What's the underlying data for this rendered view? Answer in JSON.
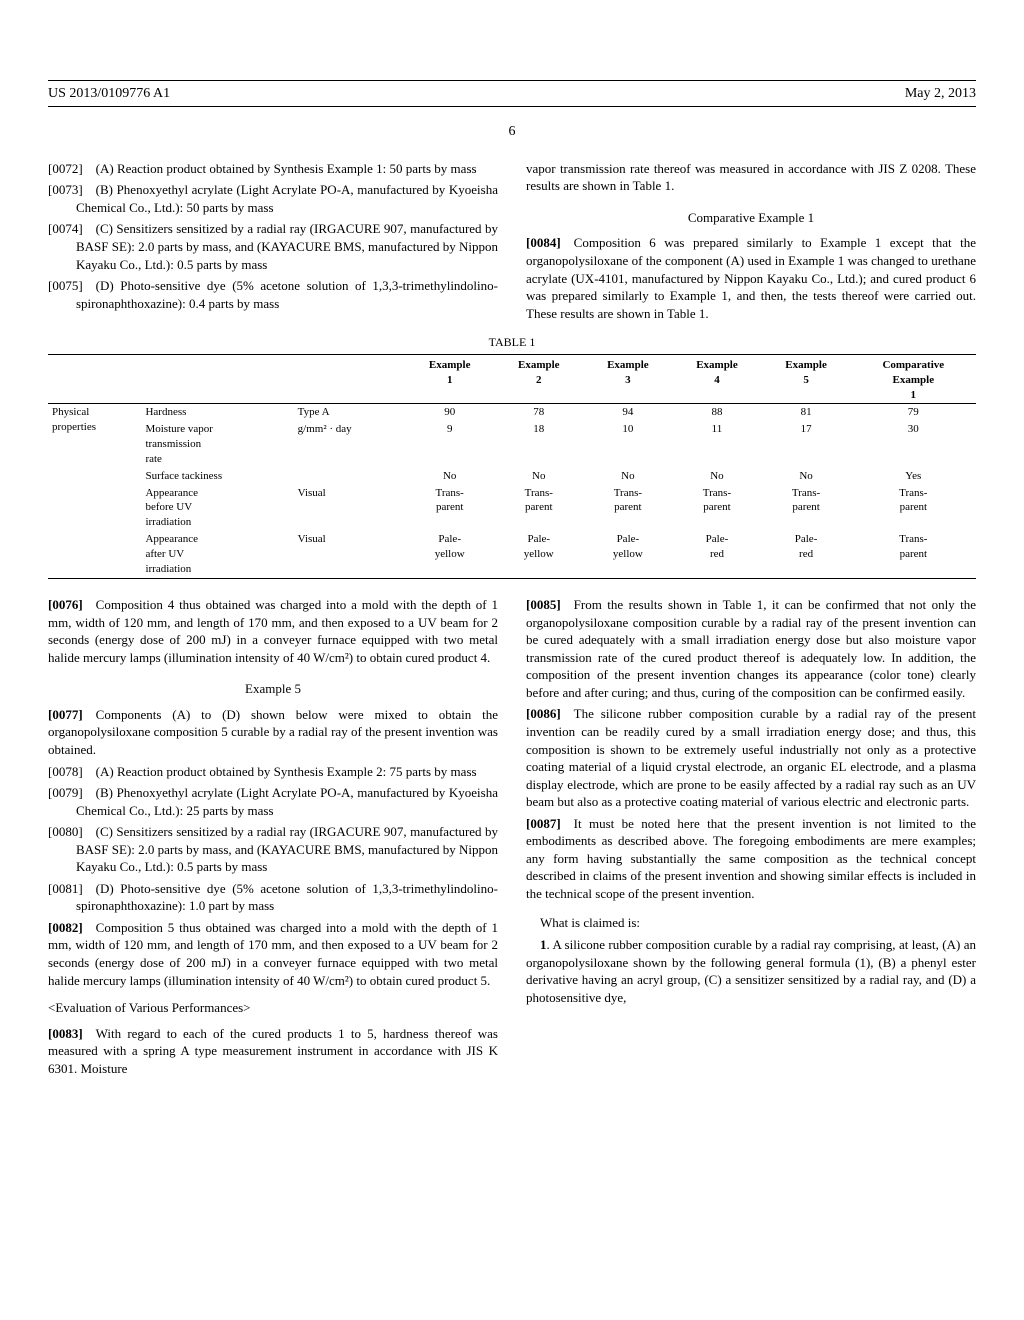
{
  "header": {
    "pub_no": "US 2013/0109776 A1",
    "date": "May 2, 2013"
  },
  "page_number": "6",
  "left": {
    "p0072": "[0072] (A) Reaction product obtained by Synthesis Example 1: 50 parts by mass",
    "p0073": "[0073] (B) Phenoxyethyl acrylate (Light Acrylate PO-A, manufactured by Kyoeisha Chemical Co., Ltd.): 50 parts by mass",
    "p0074": "[0074] (C) Sensitizers sensitized by a radial ray (IRGACURE 907, manufactured by BASF SE): 2.0 parts by mass, and (KAYACURE BMS, manufactured by Nippon Kayaku Co., Ltd.): 0.5 parts by mass",
    "p0075": "[0075] (D) Photo-sensitive dye (5% acetone solution of 1,3,3-trimethylindolino-spironaphthoxazine): 0.4 parts by mass",
    "p0076_num": "[0076]",
    "p0076": "Composition 4 thus obtained was charged into a mold with the depth of 1 mm, width of 120 mm, and length of 170 mm, and then exposed to a UV beam for 2 seconds (energy dose of 200 mJ) in a conveyer furnace equipped with two metal halide mercury lamps (illumination intensity of 40 W/cm²) to obtain cured product 4.",
    "ex5_title": "Example 5",
    "p0077_num": "[0077]",
    "p0077": "Components (A) to (D) shown below were mixed to obtain the organopolysiloxane composition 5 curable by a radial ray of the present invention was obtained.",
    "p0078": "[0078] (A) Reaction product obtained by Synthesis Example 2: 75 parts by mass",
    "p0079": "[0079] (B) Phenoxyethyl acrylate (Light Acrylate PO-A, manufactured by Kyoeisha Chemical Co., Ltd.): 25 parts by mass",
    "p0080": "[0080] (C) Sensitizers sensitized by a radial ray (IRGACURE 907, manufactured by BASF SE): 2.0 parts by mass, and (KAYACURE BMS, manufactured by Nippon Kayaku Co., Ltd.): 0.5 parts by mass",
    "p0081": "[0081] (D) Photo-sensitive dye (5% acetone solution of 1,3,3-trimethylindolino-spironaphthoxazine): 1.0 part by mass",
    "p0082_num": "[0082]",
    "p0082": "Composition 5 thus obtained was charged into a mold with the depth of 1 mm, width of 120 mm, and length of 170 mm, and then exposed to a UV beam for 2 seconds (energy dose of 200 mJ) in a conveyer furnace equipped with two metal halide mercury lamps (illumination intensity of 40 W/cm²) to obtain cured product 5.",
    "eval_head": "<Evaluation of Various Performances>",
    "p0083_num": "[0083]",
    "p0083": "With regard to each of the cured products 1 to 5, hardness thereof was measured with a spring A type measurement instrument in accordance with JIS K 6301. Moisture"
  },
  "right": {
    "r_cont": "vapor transmission rate thereof was measured in accordance with JIS Z 0208. These results are shown in Table 1.",
    "comp_title": "Comparative Example 1",
    "p0084_num": "[0084]",
    "p0084": "Composition 6 was prepared similarly to Example 1 except that the organopolysiloxane of the component (A) used in Example 1 was changed to urethane acrylate (UX-4101, manufactured by Nippon Kayaku Co., Ltd.); and cured product 6 was prepared similarly to Example 1, and then, the tests thereof were carried out. These results are shown in Table 1.",
    "p0085_num": "[0085]",
    "p0085": "From the results shown in Table 1, it can be confirmed that not only the organopolysiloxane composition curable by a radial ray of the present invention can be cured adequately with a small irradiation energy dose but also moisture vapor transmission rate of the cured product thereof is adequately low. In addition, the composition of the present invention changes its appearance (color tone) clearly before and after curing; and thus, curing of the composition can be confirmed easily.",
    "p0086_num": "[0086]",
    "p0086": "The silicone rubber composition curable by a radial ray of the present invention can be readily cured by a small irradiation energy dose; and thus, this composition is shown to be extremely useful industrially not only as a protective coating material of a liquid crystal electrode, an organic EL electrode, and a plasma display electrode, which are prone to be easily affected by a radial ray such as an UV beam but also as a protective coating material of various electric and electronic parts.",
    "p0087_num": "[0087]",
    "p0087": "It must be noted here that the present invention is not limited to the embodiments as described above. The foregoing embodiments are mere examples; any form having substantially the same composition as the technical concept described in claims of the present invention and showing similar effects is included in the technical scope of the present invention.",
    "claims_head": "What is claimed is:",
    "claim1_num": "1",
    "claim1": ". A silicone rubber composition curable by a radial ray comprising, at least, (A) an organopolysiloxane shown by the following general formula (1), (B) a phenyl ester derivative having an acryl group, (C) a sensitizer sensitized by a radial ray, and (D) a photosensitive dye,"
  },
  "table": {
    "label": "TABLE 1",
    "columns": [
      "Example 1",
      "Example 2",
      "Example 3",
      "Example 4",
      "Example 5",
      "Comparative Example 1"
    ],
    "rowgroup_label": "Physical properties",
    "rows": [
      {
        "prop": "Hardness",
        "unit": "Type A",
        "vals": [
          "90",
          "78",
          "94",
          "88",
          "81",
          "79"
        ]
      },
      {
        "prop": "Moisture vapor transmission rate",
        "unit": "g/mm² · day",
        "vals": [
          "9",
          "18",
          "10",
          "11",
          "17",
          "30"
        ]
      },
      {
        "prop": "Surface tackiness",
        "unit": "",
        "vals": [
          "No",
          "No",
          "No",
          "No",
          "No",
          "Yes"
        ]
      },
      {
        "prop": "Appearance before UV irradiation",
        "unit": "Visual",
        "vals": [
          "Trans-parent",
          "Trans-parent",
          "Trans-parent",
          "Trans-parent",
          "Trans-parent",
          "Trans-parent"
        ]
      },
      {
        "prop": "Appearance after UV irradiation",
        "unit": "Visual",
        "vals": [
          "Pale-yellow",
          "Pale-yellow",
          "Pale-yellow",
          "Pale-red",
          "Pale-red",
          "Trans-parent"
        ]
      }
    ]
  }
}
